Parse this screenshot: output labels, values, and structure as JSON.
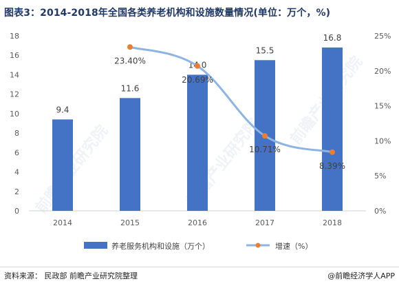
{
  "title": "图表3：2014-2018年全国各类养老机构和设施数量情况(单位：万个，%)",
  "source": "资料来源： 民政部 前瞻产业研究院整理",
  "brand": "@前瞻经济学人APP",
  "watermark_text": "前瞻产业研究院",
  "colors": {
    "bar": "#4472c4",
    "line": "#8db4e2",
    "marker": "#ed7d31",
    "axis_text": "#595959",
    "title": "#1f3864"
  },
  "chart_data": {
    "type": "bar",
    "categories": [
      "2014",
      "2015",
      "2016",
      "2017",
      "2018"
    ],
    "series": [
      {
        "name": "养老服务机构和设施（万个）",
        "type": "bar",
        "axis": "left",
        "values": [
          9.4,
          11.6,
          14.0,
          15.5,
          16.8
        ],
        "labels": [
          "9.4",
          "11.6",
          "14.0",
          "15.5",
          "16.8"
        ]
      },
      {
        "name": "增速（%）",
        "type": "line",
        "axis": "right",
        "values": [
          null,
          23.4,
          20.69,
          10.71,
          8.39
        ],
        "labels": [
          "",
          "23.40%",
          "20.69%",
          "10.71%",
          "8.39%"
        ]
      }
    ],
    "left_axis": {
      "ylim": [
        0,
        18
      ],
      "ticks": [
        "0",
        "2",
        "4",
        "6",
        "8",
        "10",
        "12",
        "14",
        "16",
        "18"
      ]
    },
    "right_axis": {
      "ylim": [
        0,
        25
      ],
      "ticks": [
        "0%",
        "5%",
        "10%",
        "15%",
        "20%",
        "25%"
      ]
    },
    "grid": false,
    "legend_position": "bottom"
  }
}
